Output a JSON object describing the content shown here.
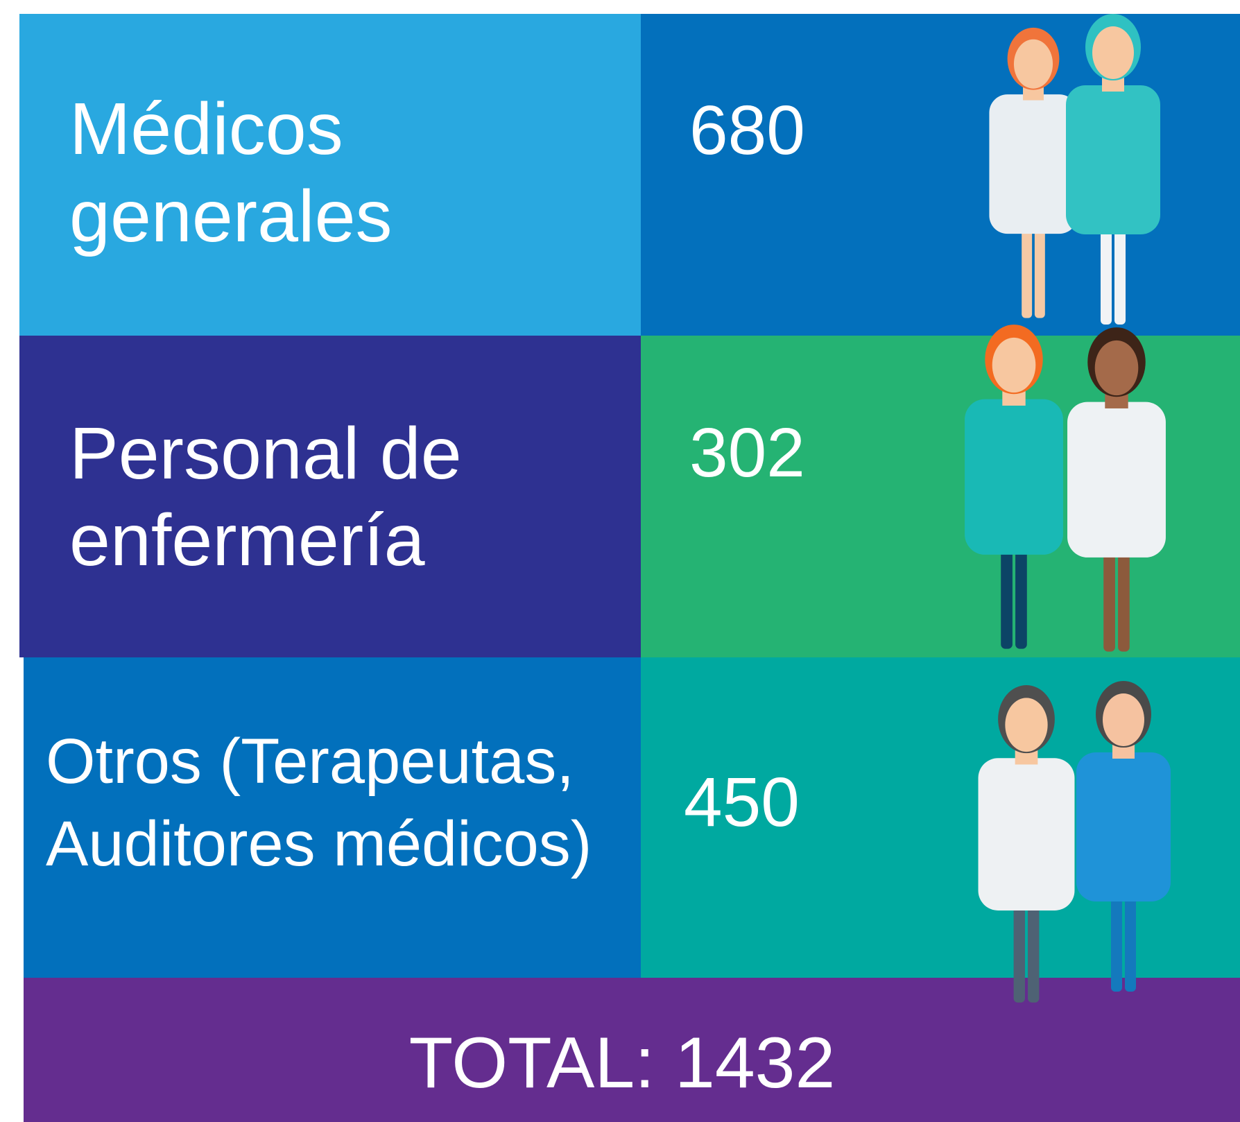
{
  "rows": [
    {
      "label": [
        "Médicos",
        "generales"
      ],
      "value": 680
    },
    {
      "label": [
        "Personal de",
        "enfermería"
      ],
      "value": 302
    },
    {
      "label": [
        "Otros (Terapeutas,",
        "Auditores médicos)"
      ],
      "value": 450
    }
  ],
  "total": "TOTAL: 1432"
}
